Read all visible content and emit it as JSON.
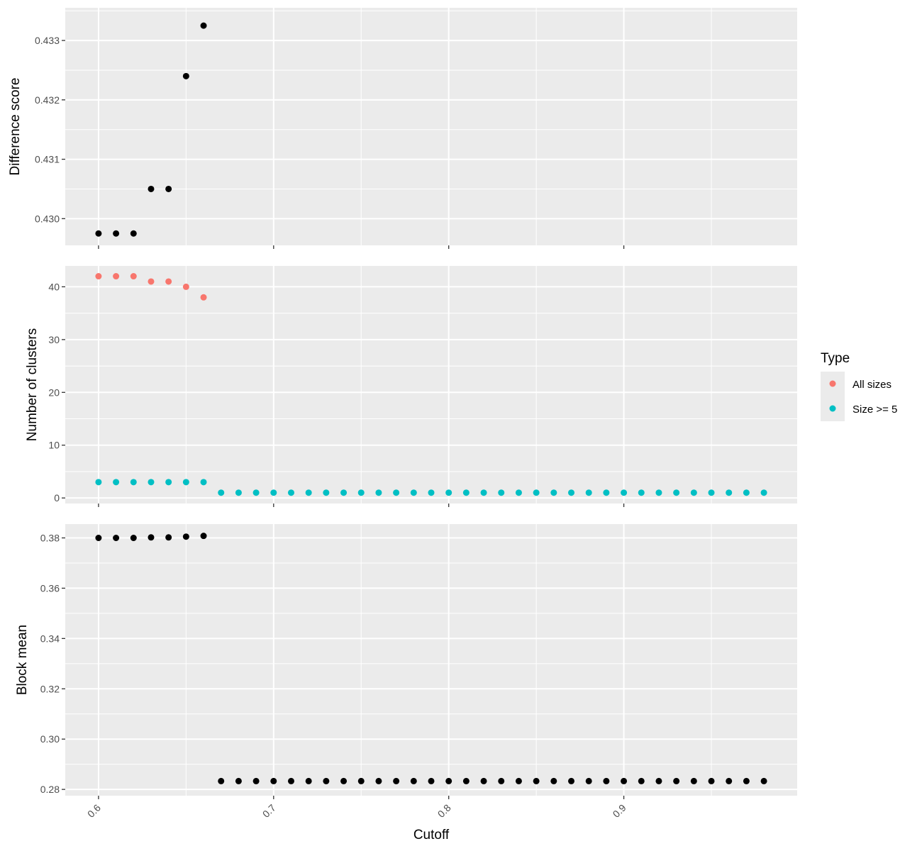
{
  "chart_data": {
    "type": "scatter",
    "title": "",
    "xlabel": "Cutoff",
    "xlim": [
      0.581,
      0.999
    ],
    "x_ticks": [
      0.6,
      0.7,
      0.8,
      0.9
    ],
    "x_tick_labels": [
      "0.6",
      "0.7",
      "0.8",
      "0.9"
    ],
    "grid": true,
    "legend": {
      "title": "Type",
      "placement": "right",
      "entries": [
        {
          "label": "All sizes",
          "color": "#F8766D"
        },
        {
          "label": "Size >= 5",
          "color": "#00BFC4"
        }
      ]
    },
    "panels": [
      {
        "ylabel": "Difference score",
        "ylim": [
          0.42955,
          0.43355
        ],
        "y_ticks": [
          0.43,
          0.431,
          0.432,
          0.433
        ],
        "y_tick_labels": [
          "0.430",
          "0.431",
          "0.432",
          "0.433"
        ],
        "series": [
          {
            "color": "#000000",
            "x": [
              0.6,
              0.61,
              0.62,
              0.63,
              0.64,
              0.65,
              0.66
            ],
            "y": [
              0.42975,
              0.42975,
              0.42975,
              0.4305,
              0.4305,
              0.4324,
              0.43325
            ]
          }
        ]
      },
      {
        "ylabel": "Number of clusters",
        "ylim": [
          -1.05,
          43.95
        ],
        "y_ticks": [
          0,
          10,
          20,
          30,
          40
        ],
        "y_tick_labels": [
          "0",
          "10",
          "20",
          "30",
          "40"
        ],
        "series": [
          {
            "name": "All sizes",
            "color": "#F8766D",
            "x": [
              0.6,
              0.61,
              0.62,
              0.63,
              0.64,
              0.65,
              0.66
            ],
            "y": [
              42,
              42,
              42,
              41,
              41,
              40,
              38
            ]
          },
          {
            "name": "Size >= 5",
            "color": "#00BFC4",
            "x": [
              0.6,
              0.61,
              0.62,
              0.63,
              0.64,
              0.65,
              0.66,
              0.67,
              0.68,
              0.69,
              0.7,
              0.71,
              0.72,
              0.73,
              0.74,
              0.75,
              0.76,
              0.77,
              0.78,
              0.79,
              0.8,
              0.81,
              0.82,
              0.83,
              0.84,
              0.85,
              0.86,
              0.87,
              0.88,
              0.89,
              0.9,
              0.91,
              0.92,
              0.93,
              0.94,
              0.95,
              0.96,
              0.97,
              0.98
            ],
            "y": [
              3,
              3,
              3,
              3,
              3,
              3,
              3,
              1,
              1,
              1,
              1,
              1,
              1,
              1,
              1,
              1,
              1,
              1,
              1,
              1,
              1,
              1,
              1,
              1,
              1,
              1,
              1,
              1,
              1,
              1,
              1,
              1,
              1,
              1,
              1,
              1,
              1,
              1,
              1
            ]
          }
        ]
      },
      {
        "ylabel": "Block mean",
        "ylim": [
          0.2775,
          0.3855
        ],
        "y_ticks": [
          0.28,
          0.3,
          0.32,
          0.34,
          0.36,
          0.38
        ],
        "y_tick_labels": [
          "0.28",
          "0.30",
          "0.32",
          "0.34",
          "0.36",
          "0.38"
        ],
        "series": [
          {
            "color": "#000000",
            "x": [
              0.6,
              0.61,
              0.62,
              0.63,
              0.64,
              0.65,
              0.66,
              0.67,
              0.68,
              0.69,
              0.7,
              0.71,
              0.72,
              0.73,
              0.74,
              0.75,
              0.76,
              0.77,
              0.78,
              0.79,
              0.8,
              0.81,
              0.82,
              0.83,
              0.84,
              0.85,
              0.86,
              0.87,
              0.88,
              0.89,
              0.9,
              0.91,
              0.92,
              0.93,
              0.94,
              0.95,
              0.96,
              0.97,
              0.98
            ],
            "y": [
              0.38,
              0.38,
              0.38,
              0.3802,
              0.3802,
              0.3805,
              0.3808,
              0.2833,
              0.2833,
              0.2833,
              0.2833,
              0.2833,
              0.2833,
              0.2833,
              0.2833,
              0.2833,
              0.2833,
              0.2833,
              0.2833,
              0.2833,
              0.2833,
              0.2833,
              0.2833,
              0.2833,
              0.2833,
              0.2833,
              0.2833,
              0.2833,
              0.2833,
              0.2833,
              0.2833,
              0.2833,
              0.2833,
              0.2833,
              0.2833,
              0.2833,
              0.2833,
              0.2833,
              0.2833
            ]
          }
        ]
      }
    ]
  }
}
